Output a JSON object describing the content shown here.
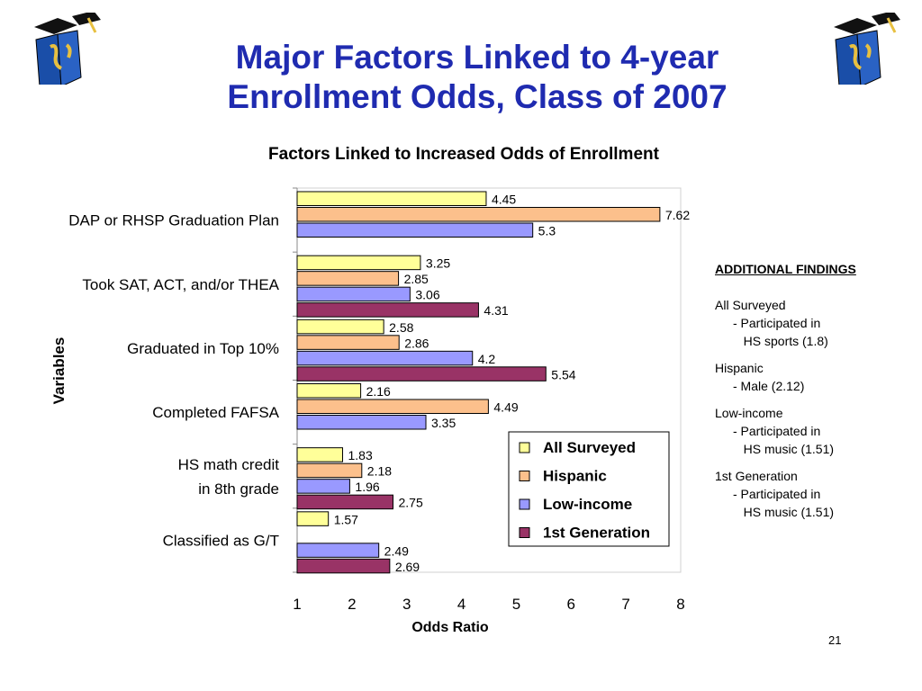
{
  "slide": {
    "title_line1": "Major Factors Linked to 4-year",
    "title_line2": "Enrollment Odds, Class of 2007",
    "page_number": "21"
  },
  "logo": {
    "name": "graduate-cap-logo"
  },
  "additional_findings": {
    "header": "ADDITIONAL FINDINGS",
    "groups": [
      {
        "label": "All Surveyed",
        "lines": [
          "- Participated in",
          "   HS sports (1.8)"
        ]
      },
      {
        "label": "Hispanic",
        "lines": [
          "- Male (2.12)"
        ]
      },
      {
        "label": "Low-income",
        "lines": [
          "- Participated in",
          "   HS music (1.51)"
        ]
      },
      {
        "label": "1st Generation",
        "lines": [
          "- Participated in",
          "   HS music (1.51)"
        ]
      }
    ]
  },
  "chart_data": {
    "type": "bar",
    "orientation": "horizontal",
    "title": "Factors Linked to Increased Odds of Enrollment",
    "xlabel": "Odds Ratio",
    "ylabel": "Variables",
    "xlim": [
      1,
      8
    ],
    "xticks": [
      "1",
      "2",
      "3",
      "4",
      "5",
      "6",
      "7",
      "8"
    ],
    "legend_position": "bottom-right inside",
    "categories": [
      [
        "DAP or RHSP Graduation Plan"
      ],
      [
        "Took SAT, ACT, and/or THEA"
      ],
      [
        "Graduated in Top 10%"
      ],
      [
        "Completed FAFSA"
      ],
      [
        "HS math credit",
        "in 8th grade"
      ],
      [
        "Classified as G/T"
      ]
    ],
    "series": [
      {
        "name": "All Surveyed",
        "color": "#ffff99",
        "values": [
          4.45,
          3.25,
          2.58,
          2.16,
          1.83,
          1.57
        ]
      },
      {
        "name": "Hispanic",
        "color": "#fcc08c",
        "values": [
          7.62,
          2.85,
          2.86,
          4.49,
          2.18,
          null
        ]
      },
      {
        "name": "Low-income",
        "color": "#9999ff",
        "values": [
          5.3,
          3.06,
          4.2,
          3.35,
          1.96,
          2.49
        ]
      },
      {
        "name": "1st Generation",
        "color": "#993366",
        "values": [
          null,
          4.31,
          5.54,
          null,
          2.75,
          2.69
        ]
      }
    ]
  }
}
